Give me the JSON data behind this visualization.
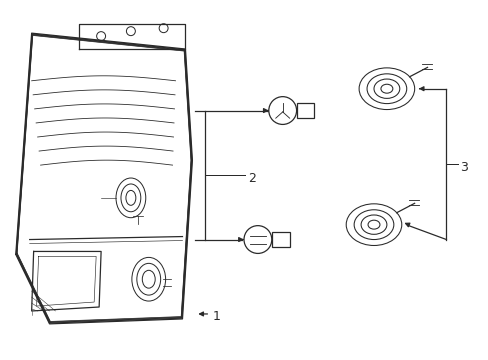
{
  "background_color": "#ffffff",
  "line_color": "#2a2a2a",
  "lw": 0.9,
  "fig_w": 4.89,
  "fig_h": 3.6,
  "dpi": 100
}
